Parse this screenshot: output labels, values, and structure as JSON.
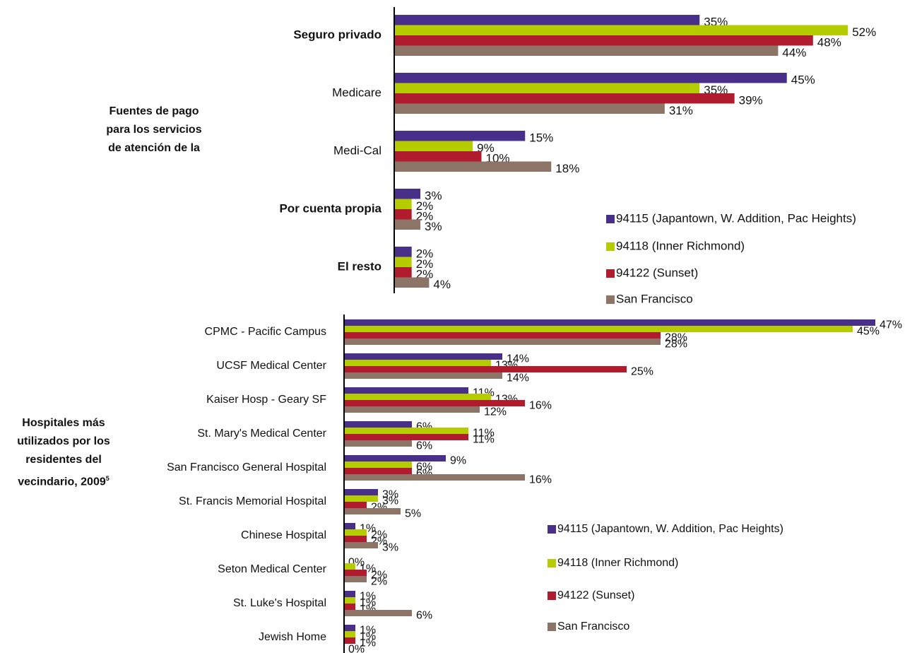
{
  "chart_data": [
    {
      "type": "bar",
      "orientation": "horizontal",
      "side_label": "Fuentes de pago para los servicios de atención de la",
      "categories": [
        "Seguro privado",
        "Medicare",
        "Medi-Cal",
        "Por cuenta propia",
        "El resto"
      ],
      "bold": [
        true,
        false,
        false,
        true,
        true
      ],
      "series": [
        {
          "name": "94115 (Japantown, W. Addition, Pac Heights)",
          "color": "#482f8a",
          "values": [
            35,
            45,
            15,
            3,
            2
          ],
          "value_labels": [
            "35%",
            "45%",
            "15%",
            "3%",
            "2%"
          ]
        },
        {
          "name": "94118 (Inner Richmond)",
          "color": "#b5cc00",
          "values": [
            52,
            35,
            9,
            2,
            2
          ],
          "value_labels": [
            "52%",
            "35%",
            "9%",
            "2%",
            "2%"
          ]
        },
        {
          "name": "94122 (Sunset)",
          "color": "#b01c2e",
          "values": [
            48,
            39,
            10,
            2,
            2
          ],
          "value_labels": [
            "48%",
            "39%",
            "10%",
            "2%",
            "2%"
          ]
        },
        {
          "name": "San Francisco",
          "color": "#8c7466",
          "values": [
            44,
            31,
            18,
            3,
            4
          ],
          "value_labels": [
            "44%",
            "31%",
            "18%",
            "3%",
            "4%"
          ]
        }
      ]
    },
    {
      "type": "bar",
      "orientation": "horizontal",
      "side_label": "Hospitales más utilizados por los residentes del vecindario, 2009",
      "side_label_note": "5",
      "categories": [
        "CPMC - Pacific Campus",
        "UCSF Medical Center",
        "Kaiser Hosp - Geary SF",
        "St. Mary's Medical Center",
        "San Francisco General Hospital",
        "St. Francis Memorial Hospital",
        "Chinese Hospital",
        "Seton Medical Center",
        "St. Luke's Hospital",
        "Jewish Home"
      ],
      "bold": [
        false,
        false,
        false,
        false,
        false,
        false,
        false,
        false,
        false,
        false
      ],
      "series": [
        {
          "name": "94115 (Japantown, W. Addition, Pac Heights)",
          "color": "#482f8a",
          "values": [
            47,
            14,
            11,
            6,
            9,
            3,
            1,
            0,
            1,
            1
          ],
          "value_labels": [
            "47%",
            "14%",
            "11%",
            "6%",
            "9%",
            "3%",
            "1%",
            "0%",
            "1%",
            "1%"
          ]
        },
        {
          "name": "94118 (Inner Richmond)",
          "color": "#b5cc00",
          "values": [
            45,
            13,
            13,
            11,
            6,
            3,
            2,
            1,
            1,
            1
          ],
          "value_labels": [
            "45%",
            "13%",
            "13%",
            "11%",
            "6%",
            "3%",
            "2%",
            "1%",
            "1%",
            "1%"
          ]
        },
        {
          "name": "94122 (Sunset)",
          "color": "#b01c2e",
          "values": [
            28,
            25,
            16,
            11,
            6,
            2,
            2,
            2,
            1,
            1
          ],
          "value_labels": [
            "28%",
            "25%",
            "16%",
            "11%",
            "6%",
            "2%",
            "2%",
            "2%",
            "1%",
            "1%"
          ]
        },
        {
          "name": "San Francisco",
          "color": "#8c7466",
          "values": [
            28,
            14,
            12,
            6,
            16,
            5,
            3,
            2,
            6,
            0
          ],
          "value_labels": [
            "28%",
            "14%",
            "12%",
            "6%",
            "16%",
            "5%",
            "3%",
            "2%",
            "6%",
            "0%"
          ]
        }
      ]
    }
  ]
}
